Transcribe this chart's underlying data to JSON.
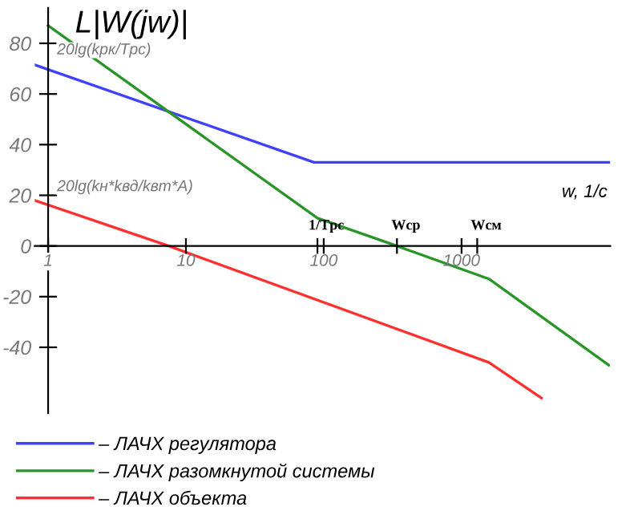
{
  "chart_data": {
    "type": "line",
    "ylabel": "L|W(jw)|",
    "xlabel": "w, 1/c",
    "log": "x",
    "xlim": [
      0.8,
      12000
    ],
    "ylim": [
      -66,
      94
    ],
    "xticks": [
      1,
      10,
      {
        "value": 90,
        "label": null
      },
      100,
      {
        "value": 340,
        "label": null
      },
      1000,
      {
        "value": 1300,
        "label": null
      }
    ],
    "yticks": [
      -40,
      -20,
      0,
      20,
      40,
      60,
      80
    ],
    "grid": false,
    "legend": "bottom",
    "marker": "none",
    "line_style": "solid",
    "series": [
      {
        "name": "– ЛАЧХ регулятора",
        "color": "#4040ff",
        "x": [
          0.8,
          85,
          11700
        ],
        "values": [
          71.5,
          33,
          33
        ]
      },
      {
        "name": "– ЛАЧХ разомкнутой системы",
        "color": "#2a962a",
        "x": [
          1,
          90,
          340,
          1580,
          11700
        ],
        "values": [
          87,
          11,
          0,
          -13,
          -47
        ]
      },
      {
        "name": "– ЛАЧХ объекта",
        "color": "#ff3030",
        "x": [
          0.8,
          7.5,
          1580,
          3800
        ],
        "values": [
          18,
          0,
          -46,
          -60
        ]
      }
    ],
    "annotations": [
      {
        "text": "20lg(kрк/Tрс)",
        "x": 1,
        "y": 70
      },
      {
        "text": "20lg(kн*kвд/kвт*A)",
        "x": 1,
        "y": 16
      },
      "1/Tрс",
      "Wср",
      "Wсм"
    ]
  }
}
